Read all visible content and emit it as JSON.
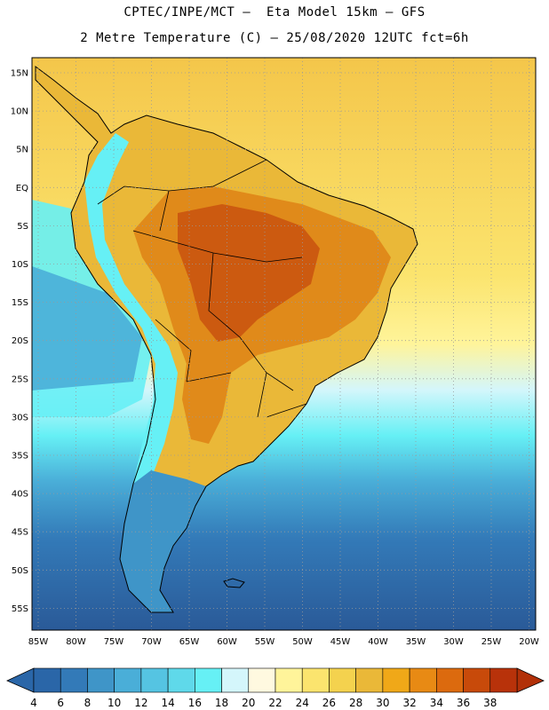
{
  "header": {
    "line1": "CPTEC/INPE/MCT –  Eta Model 15km – GFS",
    "line2": "2 Metre Temperature (C) – 25/08/2020 12UTC fct=6h"
  },
  "axes": {
    "lat_labels": [
      "15N",
      "10N",
      "5N",
      "EQ",
      "5S",
      "10S",
      "15S",
      "20S",
      "25S",
      "30S",
      "35S",
      "40S",
      "45S",
      "50S",
      "55S"
    ],
    "lon_labels": [
      "85W",
      "80W",
      "75W",
      "70W",
      "65W",
      "60W",
      "55W",
      "50W",
      "45W",
      "40W",
      "35W",
      "30W",
      "25W",
      "20W"
    ]
  },
  "colorbar": {
    "ticks": [
      "4",
      "6",
      "8",
      "10",
      "12",
      "14",
      "16",
      "18",
      "20",
      "22",
      "24",
      "26",
      "28",
      "30",
      "32",
      "34",
      "36",
      "38"
    ],
    "colors": [
      "#2a66a8",
      "#337ab8",
      "#3f95c8",
      "#4aaed8",
      "#55c4e2",
      "#5fd9ea",
      "#66f0f5",
      "#d4f6fb",
      "#fff9e0",
      "#fff49a",
      "#fbe46e",
      "#f4d24e",
      "#eab838",
      "#f0a818",
      "#e88a14",
      "#dc6a0e",
      "#c84a0a",
      "#b8320a"
    ],
    "left_arrow_color": "#2a66a8",
    "right_arrow_color": "#b23008"
  },
  "map_colors": {
    "ocean_warm": "#f4c64a",
    "ocean_mild": "#fbe46e",
    "ocean_cool": "#fff49a",
    "ocean_coolest": "#d4f6fb",
    "ocean_cold1": "#66f0f5",
    "ocean_cold2": "#4aaed8",
    "ocean_cold3": "#337ab8",
    "ocean_cold4": "#2a5a98",
    "land_warm": "#eab838",
    "land_hot": "#e08a1a",
    "land_hottest": "#cc5a10",
    "andes": "#66f0f5",
    "south_land": "#3f95c8"
  }
}
